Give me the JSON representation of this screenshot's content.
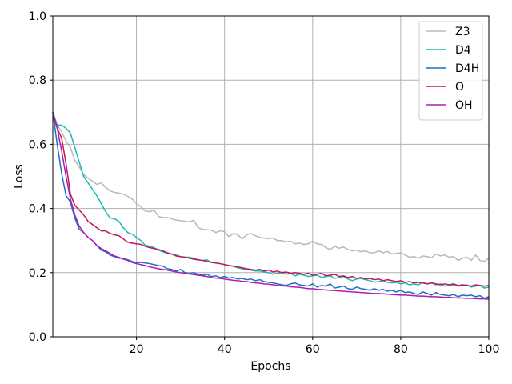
{
  "chart_data": {
    "type": "line",
    "title": "",
    "xlabel": "Epochs",
    "ylabel": "Loss",
    "xlim": [
      1,
      100
    ],
    "ylim": [
      0.0,
      1.0
    ],
    "xticks": [
      20,
      40,
      60,
      80,
      100
    ],
    "yticks": [
      0.0,
      0.2,
      0.4,
      0.6,
      0.8,
      1.0
    ],
    "xtick_labels": [
      "20",
      "40",
      "60",
      "80",
      "100"
    ],
    "ytick_labels": [
      "0.0",
      "0.2",
      "0.4",
      "0.6",
      "0.8",
      "1.0"
    ],
    "grid": true,
    "legend_position": "top-right",
    "x": [
      1,
      2,
      3,
      4,
      5,
      6,
      7,
      8,
      9,
      10,
      11,
      12,
      13,
      14,
      15,
      16,
      17,
      18,
      19,
      20,
      21,
      22,
      23,
      24,
      25,
      26,
      27,
      28,
      29,
      30,
      31,
      32,
      33,
      34,
      35,
      36,
      37,
      38,
      39,
      40,
      41,
      42,
      43,
      44,
      45,
      46,
      47,
      48,
      49,
      50,
      51,
      52,
      53,
      54,
      55,
      56,
      57,
      58,
      59,
      60,
      61,
      62,
      63,
      64,
      65,
      66,
      67,
      68,
      69,
      70,
      71,
      72,
      73,
      74,
      75,
      76,
      77,
      78,
      79,
      80,
      81,
      82,
      83,
      84,
      85,
      86,
      87,
      88,
      89,
      90,
      91,
      92,
      93,
      94,
      95,
      96,
      97,
      98,
      99,
      100
    ],
    "series": [
      {
        "name": "Z3",
        "color": "#b8b8b8",
        "values": [
          0.7,
          0.66,
          0.64,
          0.61,
          0.59,
          0.55,
          0.53,
          0.505,
          0.495,
          0.485,
          0.475,
          0.48,
          0.465,
          0.455,
          0.45,
          0.448,
          0.445,
          0.438,
          0.43,
          0.415,
          0.405,
          0.392,
          0.39,
          0.395,
          0.375,
          0.372,
          0.372,
          0.368,
          0.364,
          0.362,
          0.36,
          0.358,
          0.364,
          0.34,
          0.335,
          0.334,
          0.332,
          0.325,
          0.33,
          0.328,
          0.312,
          0.322,
          0.318,
          0.305,
          0.318,
          0.322,
          0.315,
          0.31,
          0.308,
          0.306,
          0.308,
          0.3,
          0.3,
          0.296,
          0.298,
          0.29,
          0.292,
          0.288,
          0.29,
          0.298,
          0.29,
          0.288,
          0.278,
          0.272,
          0.282,
          0.276,
          0.28,
          0.272,
          0.268,
          0.27,
          0.265,
          0.268,
          0.262,
          0.262,
          0.268,
          0.262,
          0.266,
          0.258,
          0.26,
          0.262,
          0.255,
          0.248,
          0.25,
          0.245,
          0.252,
          0.25,
          0.246,
          0.258,
          0.252,
          0.255,
          0.248,
          0.25,
          0.238,
          0.245,
          0.248,
          0.238,
          0.255,
          0.238,
          0.235,
          0.245
        ]
      },
      {
        "name": "D4",
        "color": "#17bdb4",
        "values": [
          0.7,
          0.66,
          0.66,
          0.65,
          0.635,
          0.59,
          0.545,
          0.5,
          0.48,
          0.46,
          0.44,
          0.415,
          0.39,
          0.37,
          0.368,
          0.36,
          0.34,
          0.325,
          0.32,
          0.31,
          0.3,
          0.285,
          0.282,
          0.278,
          0.27,
          0.265,
          0.26,
          0.258,
          0.255,
          0.25,
          0.248,
          0.248,
          0.245,
          0.24,
          0.238,
          0.24,
          0.232,
          0.23,
          0.228,
          0.225,
          0.222,
          0.22,
          0.215,
          0.212,
          0.21,
          0.208,
          0.205,
          0.205,
          0.202,
          0.2,
          0.195,
          0.198,
          0.2,
          0.195,
          0.198,
          0.19,
          0.195,
          0.192,
          0.188,
          0.19,
          0.192,
          0.185,
          0.188,
          0.19,
          0.182,
          0.185,
          0.188,
          0.18,
          0.175,
          0.18,
          0.182,
          0.178,
          0.175,
          0.17,
          0.172,
          0.175,
          0.17,
          0.168,
          0.17,
          0.165,
          0.168,
          0.162,
          0.165,
          0.162,
          0.17,
          0.165,
          0.168,
          0.162,
          0.165,
          0.158,
          0.16,
          0.162,
          0.158,
          0.16,
          0.162,
          0.155,
          0.158,
          0.16,
          0.152,
          0.155
        ]
      },
      {
        "name": "D4H",
        "color": "#1f6fbf",
        "values": [
          0.7,
          0.6,
          0.51,
          0.44,
          0.42,
          0.37,
          0.335,
          0.325,
          0.31,
          0.3,
          0.285,
          0.27,
          0.265,
          0.255,
          0.25,
          0.245,
          0.245,
          0.24,
          0.235,
          0.23,
          0.232,
          0.23,
          0.228,
          0.225,
          0.222,
          0.22,
          0.212,
          0.21,
          0.205,
          0.21,
          0.2,
          0.198,
          0.2,
          0.195,
          0.192,
          0.195,
          0.188,
          0.19,
          0.185,
          0.188,
          0.183,
          0.185,
          0.18,
          0.182,
          0.178,
          0.18,
          0.175,
          0.178,
          0.172,
          0.17,
          0.168,
          0.165,
          0.162,
          0.16,
          0.165,
          0.168,
          0.162,
          0.16,
          0.158,
          0.165,
          0.155,
          0.16,
          0.158,
          0.165,
          0.152,
          0.155,
          0.158,
          0.15,
          0.148,
          0.155,
          0.15,
          0.148,
          0.145,
          0.15,
          0.145,
          0.148,
          0.142,
          0.145,
          0.14,
          0.145,
          0.138,
          0.14,
          0.135,
          0.132,
          0.14,
          0.135,
          0.13,
          0.138,
          0.132,
          0.13,
          0.128,
          0.132,
          0.125,
          0.13,
          0.128,
          0.13,
          0.125,
          0.128,
          0.12,
          0.125
        ]
      },
      {
        "name": "O",
        "color": "#c0185a",
        "values": [
          0.69,
          0.65,
          0.62,
          0.54,
          0.445,
          0.41,
          0.395,
          0.38,
          0.36,
          0.35,
          0.34,
          0.33,
          0.33,
          0.322,
          0.318,
          0.315,
          0.305,
          0.295,
          0.292,
          0.29,
          0.288,
          0.282,
          0.278,
          0.275,
          0.272,
          0.268,
          0.262,
          0.258,
          0.252,
          0.25,
          0.248,
          0.245,
          0.242,
          0.24,
          0.238,
          0.235,
          0.232,
          0.23,
          0.228,
          0.225,
          0.222,
          0.22,
          0.218,
          0.215,
          0.212,
          0.21,
          0.208,
          0.21,
          0.205,
          0.208,
          0.202,
          0.205,
          0.2,
          0.202,
          0.198,
          0.2,
          0.198,
          0.195,
          0.198,
          0.192,
          0.195,
          0.198,
          0.19,
          0.192,
          0.195,
          0.188,
          0.19,
          0.185,
          0.188,
          0.182,
          0.185,
          0.18,
          0.182,
          0.178,
          0.18,
          0.175,
          0.178,
          0.175,
          0.172,
          0.175,
          0.17,
          0.172,
          0.168,
          0.17,
          0.168,
          0.165,
          0.168,
          0.165,
          0.162,
          0.165,
          0.162,
          0.165,
          0.16,
          0.162,
          0.16,
          0.158,
          0.162,
          0.16,
          0.158,
          0.16
        ]
      },
      {
        "name": "OH",
        "color": "#b11ab8",
        "values": [
          0.7,
          0.65,
          0.58,
          0.5,
          0.43,
          0.38,
          0.345,
          0.325,
          0.31,
          0.3,
          0.285,
          0.275,
          0.268,
          0.26,
          0.252,
          0.248,
          0.242,
          0.238,
          0.232,
          0.228,
          0.225,
          0.222,
          0.218,
          0.215,
          0.212,
          0.21,
          0.208,
          0.205,
          0.202,
          0.2,
          0.198,
          0.196,
          0.194,
          0.192,
          0.19,
          0.188,
          0.185,
          0.183,
          0.182,
          0.18,
          0.178,
          0.176,
          0.175,
          0.173,
          0.172,
          0.17,
          0.168,
          0.167,
          0.165,
          0.164,
          0.162,
          0.16,
          0.159,
          0.158,
          0.156,
          0.155,
          0.154,
          0.152,
          0.15,
          0.15,
          0.148,
          0.147,
          0.146,
          0.145,
          0.144,
          0.143,
          0.142,
          0.141,
          0.14,
          0.139,
          0.138,
          0.137,
          0.136,
          0.135,
          0.135,
          0.134,
          0.133,
          0.132,
          0.131,
          0.13,
          0.13,
          0.129,
          0.128,
          0.127,
          0.127,
          0.126,
          0.125,
          0.125,
          0.124,
          0.123,
          0.123,
          0.122,
          0.121,
          0.121,
          0.12,
          0.12,
          0.119,
          0.118,
          0.118,
          0.117
        ]
      }
    ]
  }
}
